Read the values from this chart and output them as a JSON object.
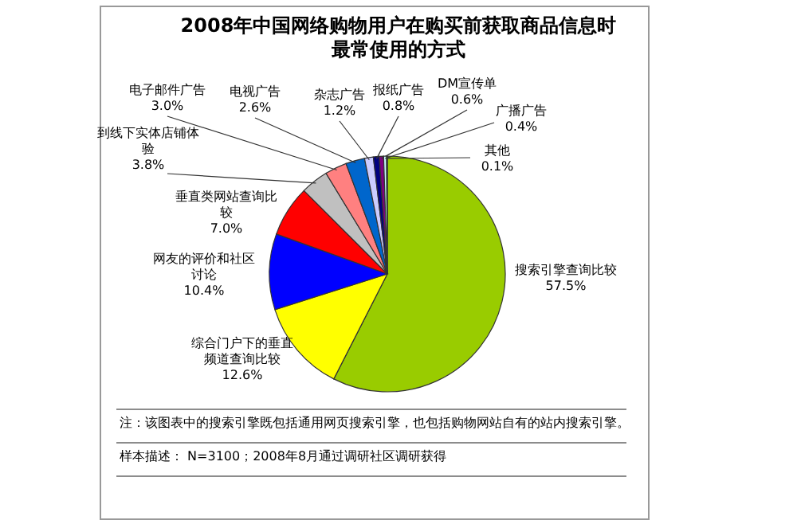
{
  "chart_data": {
    "type": "pie",
    "title": "2008年中国网络购物用户在购买前获取商品信息时最常使用的方式",
    "categories": [
      "搜索引擎查询比较",
      "综合门户下的垂直频道查询比较",
      "网友的评价和社区讨论",
      "垂直类网站查询比较",
      "到线下实体店铺体验",
      "电子邮件广告",
      "电视广告",
      "杂志广告",
      "报纸广告",
      "DM宣传单",
      "广播广告",
      "其他"
    ],
    "values": [
      57.5,
      12.6,
      10.4,
      7.0,
      3.8,
      3.0,
      2.6,
      1.2,
      0.8,
      0.6,
      0.4,
      0.1
    ],
    "value_labels": [
      "57.5%",
      "12.6%",
      "10.4%",
      "7.0%",
      "3.8%",
      "3.0%",
      "2.6%",
      "1.2%",
      "0.8%",
      "0.6%",
      "0.4%",
      "0.1%"
    ],
    "colors": [
      "#99cc00",
      "#ffff00",
      "#0000ff",
      "#ff0000",
      "#c0c0c0",
      "#ff8080",
      "#0066cc",
      "#ccccff",
      "#000080",
      "#800080",
      "#ccffff",
      "#ffcc99"
    ],
    "annotations": [
      "注：该图表中的搜索引擎既包括通用网页搜索引擎，也包括购物网站自有的站内搜索引擎。",
      "样本描述： N=3100；2008年8月通过调研社区调研获得"
    ]
  }
}
